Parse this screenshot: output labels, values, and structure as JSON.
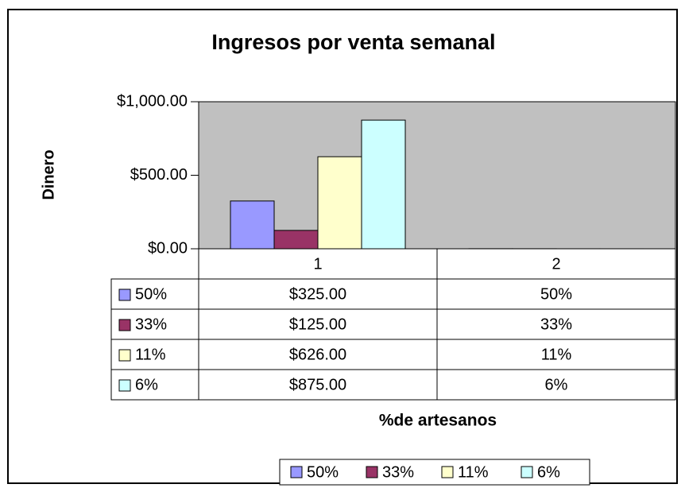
{
  "chart_data": {
    "type": "bar",
    "title": "Ingresos por venta semanal",
    "ylabel": "Dinero",
    "xlabel": "%de artesanos",
    "categories": [
      "1",
      "2"
    ],
    "series": [
      {
        "name": "50%",
        "color": "#9999ff",
        "values": [
          325,
          0.5
        ],
        "value_labels": [
          "$325.00",
          "50%"
        ]
      },
      {
        "name": "33%",
        "color": "#993366",
        "values": [
          125,
          0.33
        ],
        "value_labels": [
          "$125.00",
          "33%"
        ]
      },
      {
        "name": "11%",
        "color": "#ffffcc",
        "values": [
          626,
          0.11
        ],
        "value_labels": [
          "$626.00",
          "11%"
        ]
      },
      {
        "name": "6%",
        "color": "#ccffff",
        "values": [
          875,
          0.06
        ],
        "value_labels": [
          "$875.00",
          "6%"
        ]
      }
    ],
    "ylim": [
      0,
      1000
    ],
    "yticks": [
      {
        "value": 0,
        "label": "$0.00"
      },
      {
        "value": 500,
        "label": "$500.00"
      },
      {
        "value": 1000,
        "label": "$1,000.00"
      }
    ],
    "plot_background": "#c0c0c0",
    "legend": "bottom"
  }
}
